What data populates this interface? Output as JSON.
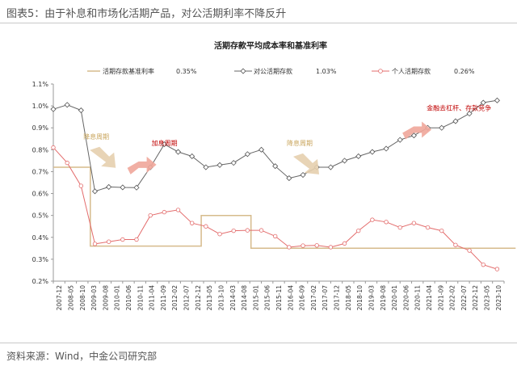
{
  "figure": {
    "title": "图表5：由于补息和市场化活期产品，对公活期利率不降反升",
    "source": "资料来源：Wind，中金公司研究部"
  },
  "chart_data": {
    "type": "line",
    "title": "活期存款平均成本率和基准利率",
    "xlabel": "",
    "ylabel": "",
    "ylim": [
      0.2,
      1.1
    ],
    "y_ticks": [
      "0.2%",
      "0.3%",
      "0.4%",
      "0.5%",
      "0.6%",
      "0.7%",
      "0.8%",
      "0.9%",
      "1.0%",
      "1.1%"
    ],
    "grid": false,
    "legend_position": "top",
    "categories": [
      "2007-12",
      "2008-05",
      "2008-10",
      "2009-03",
      "2009-08",
      "2010-01",
      "2010-06",
      "2010-11",
      "2011-04",
      "2011-09",
      "2012-02",
      "2012-07",
      "2012-12",
      "2013-05",
      "2013-10",
      "2014-03",
      "2014-08",
      "2015-01",
      "2015-06",
      "2015-11",
      "2016-04",
      "2016-09",
      "2017-02",
      "2017-07",
      "2017-12",
      "2018-05",
      "2018-10",
      "2019-03",
      "2019-08",
      "2020-01",
      "2020-06",
      "2020-11",
      "2021-04",
      "2021-09",
      "2022-02",
      "2022-07",
      "2022-12",
      "2023-05",
      "2023-10"
    ],
    "x_tick_labels": [
      "2007-12",
      "2008-05",
      "2008-10",
      "2009-03",
      "2009-08",
      "2010-01",
      "2010-06",
      "2010-11",
      "2011-04",
      "2011-09",
      "2012-02",
      "2012-07",
      "2012-12",
      "2013-05",
      "2013-10",
      "2014-03",
      "2014-08",
      "2015-01",
      "2015-06",
      "2015-11",
      "2016-04",
      "2016-09",
      "2017-02",
      "2017-07",
      "2017-12",
      "2018-05",
      "2018-10",
      "2019-03",
      "2019-08",
      "2020-01",
      "2020-06",
      "2020-11",
      "2021-04",
      "2021-09",
      "2022-02",
      "2022-07",
      "2022-12",
      "2023-05",
      "2023-10"
    ],
    "series": [
      {
        "name": "活期存款基准利率",
        "color": "#d6bb8c",
        "style": "step",
        "last_label": "0.35%",
        "steps": [
          {
            "from": 0,
            "to": 3.2,
            "value": 0.72
          },
          {
            "from": 3.2,
            "to": 12.8,
            "value": 0.36
          },
          {
            "from": 12.8,
            "to": 17.1,
            "value": 0.5
          },
          {
            "from": 17.1,
            "to": 40.0,
            "value": 0.35
          }
        ]
      },
      {
        "name": "对公活期存款",
        "color": "#666666",
        "marker": "diamond",
        "last_label": "1.03%",
        "points": [
          [
            0,
            0.985
          ],
          [
            2,
            1.005
          ],
          [
            4,
            0.98
          ],
          [
            6,
            0.61
          ],
          [
            8,
            0.63
          ],
          [
            10,
            0.628
          ],
          [
            12,
            0.627
          ],
          [
            14,
            0.72
          ],
          [
            16,
            0.825
          ],
          [
            18,
            0.79
          ],
          [
            20,
            0.77
          ],
          [
            22,
            0.72
          ],
          [
            24,
            0.73
          ],
          [
            26,
            0.74
          ],
          [
            28,
            0.78
          ],
          [
            30,
            0.8
          ],
          [
            32,
            0.725
          ],
          [
            34,
            0.67
          ],
          [
            36,
            0.685
          ],
          [
            38,
            0.72
          ],
          [
            40,
            0.72
          ],
          [
            42,
            0.75
          ],
          [
            44,
            0.77
          ],
          [
            46,
            0.79
          ],
          [
            48,
            0.805
          ],
          [
            50,
            0.845
          ],
          [
            52,
            0.865
          ],
          [
            54,
            0.9
          ],
          [
            56,
            0.9
          ],
          [
            58,
            0.93
          ],
          [
            60,
            0.965
          ],
          [
            62,
            1.015
          ],
          [
            64,
            1.025
          ]
        ]
      },
      {
        "name": "个人活期存款",
        "color": "#e36c6c",
        "marker": "circle",
        "last_label": "0.26%",
        "points": [
          [
            0,
            0.81
          ],
          [
            2,
            0.74
          ],
          [
            4,
            0.635
          ],
          [
            6,
            0.37
          ],
          [
            8,
            0.38
          ],
          [
            10,
            0.39
          ],
          [
            12,
            0.39
          ],
          [
            14,
            0.5
          ],
          [
            16,
            0.515
          ],
          [
            18,
            0.525
          ],
          [
            20,
            0.465
          ],
          [
            22,
            0.45
          ],
          [
            24,
            0.415
          ],
          [
            26,
            0.43
          ],
          [
            28,
            0.432
          ],
          [
            30,
            0.432
          ],
          [
            32,
            0.405
          ],
          [
            34,
            0.355
          ],
          [
            36,
            0.362
          ],
          [
            38,
            0.363
          ],
          [
            40,
            0.355
          ],
          [
            42,
            0.372
          ],
          [
            44,
            0.43
          ],
          [
            46,
            0.48
          ],
          [
            48,
            0.47
          ],
          [
            50,
            0.445
          ],
          [
            52,
            0.465
          ],
          [
            54,
            0.445
          ],
          [
            56,
            0.43
          ],
          [
            58,
            0.365
          ],
          [
            60,
            0.34
          ],
          [
            62,
            0.275
          ],
          [
            64,
            0.255
          ]
        ]
      }
    ],
    "annotations": [
      {
        "text": "降息周期",
        "color": "#c9a55c",
        "arrow": "down",
        "at": [
          2.6,
          0.85
        ]
      },
      {
        "text": "加息周期",
        "color": "#c00000",
        "arrow": "up",
        "at": [
          8.5,
          0.82
        ]
      },
      {
        "text": "降息周期",
        "color": "#c9a55c",
        "arrow": "down",
        "at": [
          20.2,
          0.82
        ]
      },
      {
        "text": "金融去杠杆、存款竞争",
        "color": "#c00000",
        "arrow": "up",
        "at": [
          32.3,
          0.98
        ]
      }
    ]
  }
}
